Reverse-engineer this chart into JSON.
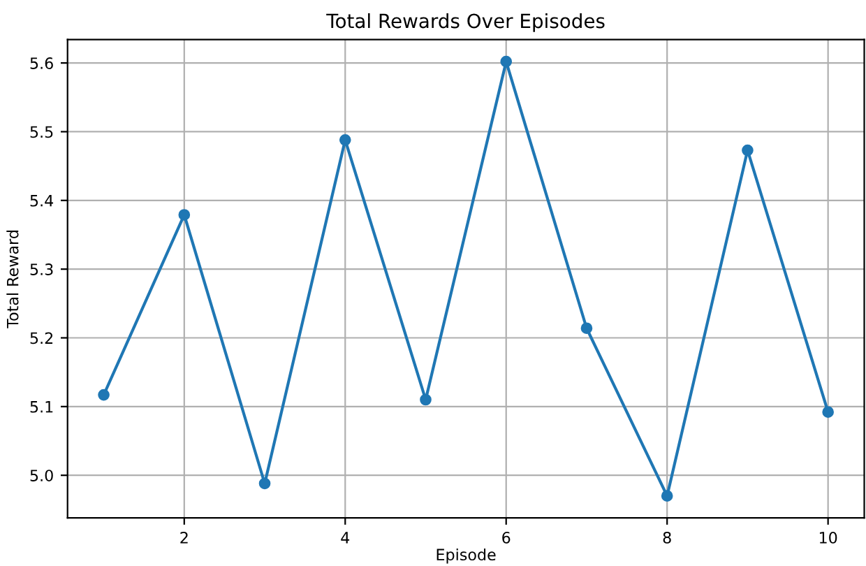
{
  "chart_data": {
    "type": "line",
    "title": "Total Rewards Over Episodes",
    "xlabel": "Episode",
    "ylabel": "Total Reward",
    "x": [
      1,
      2,
      3,
      4,
      5,
      6,
      7,
      8,
      9,
      10
    ],
    "series": [
      {
        "color": "#1f77b4",
        "values": [
          5.117,
          5.379,
          4.988,
          5.488,
          5.11,
          5.602,
          5.214,
          4.97,
          5.473,
          5.092
        ]
      }
    ],
    "xlim": [
      0.55,
      10.45
    ],
    "xticks": [
      2,
      4,
      6,
      8,
      10
    ],
    "ylim": [
      4.938,
      5.634
    ],
    "yticks": [
      {
        "value": 5.0,
        "label": "5.0"
      },
      5.1,
      5.2,
      5.3,
      5.4,
      5.5,
      5.6
    ],
    "grid": true,
    "marker": "circle",
    "line_style": "solid"
  }
}
